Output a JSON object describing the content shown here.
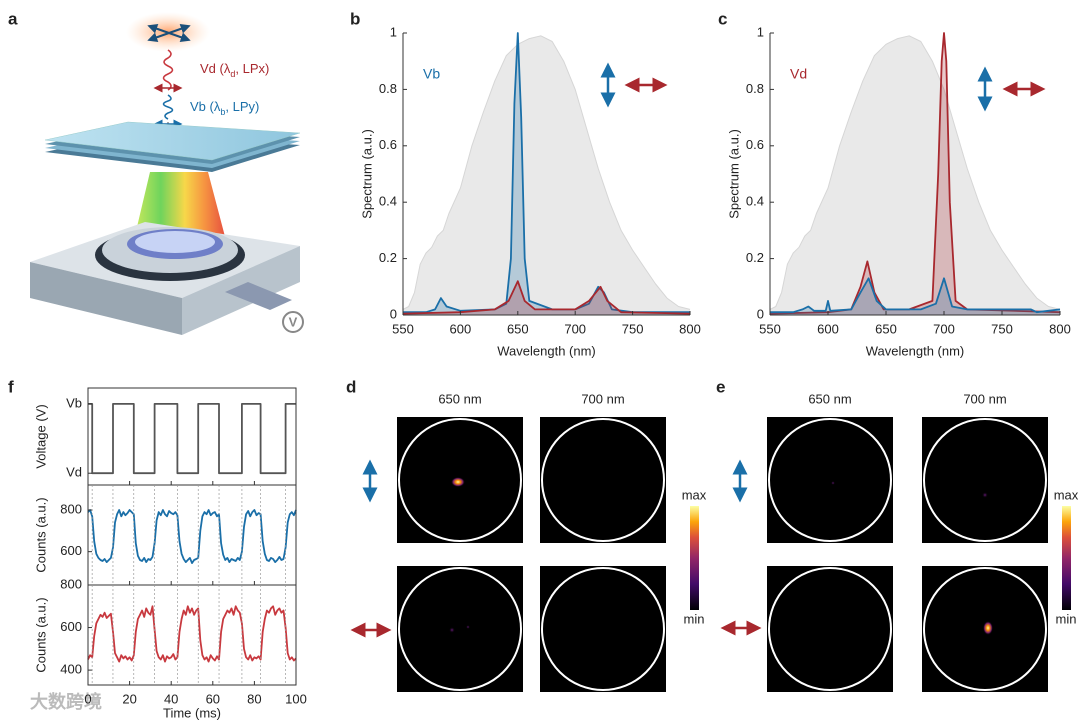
{
  "figure": {
    "panel_a": {
      "label": "a",
      "vd": {
        "text": "Vd (λ",
        "sub": "d",
        "rest": ", LPx)"
      },
      "vb": {
        "text": "Vb (λ",
        "sub": "b",
        "rest": ", LPy)"
      },
      "voltage_symbol": "V"
    },
    "panel_d": {
      "label": "d",
      "columns": [
        "650 nm",
        "700 nm"
      ],
      "colorbar": {
        "max": "max",
        "min": "min"
      }
    },
    "panel_e": {
      "label": "e",
      "columns": [
        "650 nm",
        "700 nm"
      ],
      "colorbar": {
        "max": "max",
        "min": "min"
      }
    },
    "watermark": "大数跨境"
  },
  "chart_data": [
    {
      "type": "line",
      "panel": "b",
      "xlabel": "Wavelength (nm)",
      "ylabel": "Spectrum (a.u.)",
      "xlim": [
        550,
        800
      ],
      "xticks": [
        550,
        600,
        650,
        700,
        750,
        800
      ],
      "ylim": [
        0,
        1
      ],
      "yticks": [
        0,
        0.2,
        0.4,
        0.6,
        0.8,
        1
      ],
      "annotation": {
        "text": "Vb",
        "color": "#1a6fa8"
      },
      "series": [
        {
          "color": "#e3e3e3",
          "fill": true,
          "x": [
            550,
            555,
            560,
            565,
            570,
            575,
            580,
            585,
            590,
            600,
            610,
            620,
            630,
            640,
            650,
            660,
            670,
            680,
            690,
            700,
            710,
            720,
            730,
            740,
            750,
            760,
            770,
            780,
            790,
            800
          ],
          "values": [
            0.02,
            0.03,
            0.08,
            0.18,
            0.22,
            0.24,
            0.28,
            0.3,
            0.36,
            0.45,
            0.6,
            0.72,
            0.83,
            0.92,
            0.96,
            0.98,
            0.99,
            0.97,
            0.9,
            0.8,
            0.66,
            0.52,
            0.4,
            0.3,
            0.23,
            0.17,
            0.11,
            0.06,
            0.03,
            0.02
          ]
        },
        {
          "color": "#1a6fa8",
          "fill": true,
          "x": [
            550,
            570,
            578,
            583,
            588,
            600,
            630,
            640,
            644,
            647,
            650,
            653,
            656,
            660,
            680,
            700,
            712,
            720,
            725,
            732,
            750,
            800
          ],
          "values": [
            0.01,
            0.01,
            0.02,
            0.06,
            0.03,
            0.015,
            0.02,
            0.04,
            0.2,
            0.75,
            1.0,
            0.7,
            0.2,
            0.05,
            0.02,
            0.02,
            0.04,
            0.1,
            0.08,
            0.02,
            0.01,
            0.01
          ]
        },
        {
          "color": "#a8282e",
          "fill": true,
          "x": [
            550,
            600,
            630,
            642,
            650,
            656,
            665,
            700,
            712,
            722,
            728,
            740,
            800
          ],
          "values": [
            0.005,
            0.01,
            0.02,
            0.05,
            0.12,
            0.05,
            0.02,
            0.02,
            0.05,
            0.1,
            0.05,
            0.01,
            0.005
          ]
        }
      ]
    },
    {
      "type": "line",
      "panel": "c",
      "xlabel": "Wavelength (nm)",
      "ylabel": "Spectrum (a.u.)",
      "xlim": [
        550,
        800
      ],
      "xticks": [
        550,
        600,
        650,
        700,
        750,
        800
      ],
      "ylim": [
        0,
        1
      ],
      "yticks": [
        0,
        0.2,
        0.4,
        0.6,
        0.8,
        1
      ],
      "annotation": {
        "text": "Vd",
        "color": "#a8282e"
      },
      "series": [
        {
          "color": "#e3e3e3",
          "fill": true,
          "x": [
            550,
            555,
            560,
            565,
            570,
            575,
            580,
            585,
            590,
            600,
            610,
            620,
            630,
            640,
            650,
            660,
            670,
            680,
            690,
            700,
            710,
            720,
            730,
            740,
            750,
            760,
            770,
            780,
            790,
            800
          ],
          "values": [
            0.02,
            0.03,
            0.08,
            0.18,
            0.22,
            0.24,
            0.28,
            0.3,
            0.36,
            0.45,
            0.6,
            0.72,
            0.83,
            0.92,
            0.96,
            0.98,
            0.99,
            0.97,
            0.9,
            0.8,
            0.66,
            0.52,
            0.4,
            0.3,
            0.23,
            0.17,
            0.11,
            0.06,
            0.03,
            0.02
          ]
        },
        {
          "color": "#a8282e",
          "fill": true,
          "x": [
            550,
            600,
            620,
            628,
            634,
            640,
            648,
            670,
            690,
            695,
            698,
            700,
            702,
            705,
            710,
            720,
            800
          ],
          "values": [
            0.005,
            0.01,
            0.02,
            0.1,
            0.19,
            0.08,
            0.02,
            0.02,
            0.05,
            0.5,
            0.9,
            1.0,
            0.9,
            0.4,
            0.05,
            0.02,
            0.01
          ]
        },
        {
          "color": "#1a6fa8",
          "fill": true,
          "x": [
            550,
            570,
            578,
            583,
            588,
            598,
            600,
            602,
            620,
            628,
            635,
            642,
            650,
            680,
            693,
            700,
            707,
            720,
            750,
            775,
            780,
            800
          ],
          "values": [
            0.01,
            0.01,
            0.02,
            0.03,
            0.015,
            0.015,
            0.05,
            0.015,
            0.02,
            0.08,
            0.13,
            0.05,
            0.02,
            0.02,
            0.04,
            0.13,
            0.03,
            0.02,
            0.02,
            0.02,
            0.01,
            0.02
          ]
        }
      ]
    },
    {
      "type": "line",
      "panel": "f",
      "xlabel": "Time (ms)",
      "xlim": [
        0,
        100
      ],
      "xticks": [
        0,
        20,
        40,
        60,
        80,
        100
      ],
      "x": [
        0,
        1,
        2,
        3,
        4,
        5,
        6,
        7,
        8,
        9,
        10,
        11,
        12,
        13,
        14,
        15,
        16,
        17,
        18,
        19,
        20,
        21,
        22,
        23,
        24,
        25,
        26,
        27,
        28,
        29,
        30,
        31,
        32,
        33,
        34,
        35,
        36,
        37,
        38,
        39,
        40,
        41,
        42,
        43,
        44,
        45,
        46,
        47,
        48,
        49,
        50,
        51,
        52,
        53,
        54,
        55,
        56,
        57,
        58,
        59,
        60,
        61,
        62,
        63,
        64,
        65,
        66,
        67,
        68,
        69,
        70,
        71,
        72,
        73,
        74,
        75,
        76,
        77,
        78,
        79,
        80,
        81,
        82,
        83,
        84,
        85,
        86,
        87,
        88,
        89,
        90,
        91,
        92,
        93,
        94,
        95,
        96,
        97,
        98,
        99,
        100
      ],
      "subplots": [
        {
          "ylabel": "Voltage (V)",
          "ylim": [
            -0.17,
            1.23
          ],
          "yticks": [
            {
              "value": 1,
              "label": "Vb"
            },
            {
              "value": 0,
              "label": "Vd"
            }
          ],
          "series": [
            {
              "color": "#555555",
              "x": [
                0,
                2,
                2,
                12,
                12,
                22,
                22,
                32,
                32,
                43,
                43,
                53,
                53,
                63,
                63,
                74,
                74,
                83,
                83,
                95,
                95,
                100
              ],
              "values": [
                1,
                1,
                0,
                0,
                1,
                1,
                0,
                0,
                1,
                1,
                0,
                0,
                1,
                1,
                0,
                0,
                1,
                1,
                0,
                0,
                1,
                1
              ]
            }
          ]
        },
        {
          "ylabel": "Counts (a.u.)",
          "ylim": [
            440,
            920
          ],
          "yticks": [
            600,
            800
          ],
          "series": [
            {
              "color": "#1a6fa8",
              "values": [
                790,
                800,
                770,
                650,
                590,
                570,
                560,
                555,
                565,
                550,
                560,
                570,
                620,
                740,
                780,
                800,
                770,
                790,
                775,
                785,
                800,
                790,
                780,
                640,
                580,
                560,
                555,
                570,
                550,
                565,
                560,
                575,
                640,
                750,
                790,
                775,
                800,
                780,
                770,
                795,
                785,
                780,
                790,
                775,
                650,
                590,
                565,
                550,
                560,
                570,
                545,
                560,
                565,
                570,
                700,
                770,
                790,
                780,
                800,
                775,
                785,
                790,
                770,
                780,
                640,
                585,
                560,
                570,
                550,
                565,
                560,
                555,
                570,
                560,
                600,
                720,
                780,
                795,
                770,
                790,
                800,
                775,
                785,
                780,
                650,
                590,
                560,
                555,
                570,
                565,
                550,
                560,
                575,
                560,
                565,
                620,
                740,
                780,
                790,
                775,
                800
              ]
            }
          ]
        },
        {
          "ylabel": "Counts (a.u.)",
          "ylim": [
            330,
            800
          ],
          "yticks": [
            400,
            600,
            800
          ],
          "series": [
            {
              "color": "#c8393f",
              "values": [
                450,
                470,
                460,
                560,
                620,
                640,
                660,
                650,
                670,
                645,
                655,
                665,
                580,
                480,
                460,
                440,
                470,
                455,
                465,
                450,
                460,
                445,
                470,
                580,
                640,
                660,
                680,
                650,
                690,
                670,
                660,
                700,
                590,
                490,
                460,
                450,
                470,
                440,
                465,
                455,
                460,
                475,
                450,
                460,
                580,
                640,
                680,
                660,
                700,
                670,
                690,
                660,
                680,
                690,
                540,
                470,
                450,
                460,
                440,
                470,
                455,
                445,
                465,
                450,
                580,
                640,
                660,
                680,
                670,
                690,
                660,
                700,
                680,
                670,
                620,
                500,
                460,
                450,
                470,
                445,
                460,
                455,
                465,
                450,
                580,
                640,
                680,
                670,
                690,
                700,
                660,
                680,
                690,
                670,
                680,
                600,
                480,
                450,
                460,
                445,
                455
              ]
            }
          ]
        }
      ]
    }
  ]
}
